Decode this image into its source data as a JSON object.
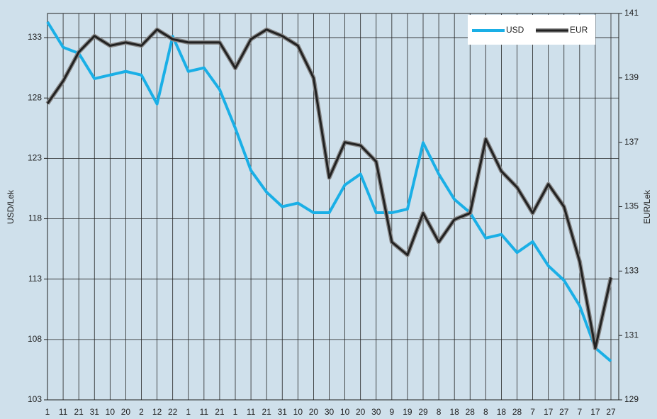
{
  "chart_data": {
    "type": "line",
    "y_label": "USD/Lek",
    "y2_label": "EUR/Lek",
    "categories": [
      "1",
      "11",
      "21",
      "31",
      "10",
      "20",
      "2",
      "12",
      "22",
      "1",
      "11",
      "21",
      "1",
      "11",
      "21",
      "31",
      "10",
      "20",
      "30",
      "10",
      "20",
      "30",
      "9",
      "19",
      "29",
      "8",
      "18",
      "28",
      "8",
      "18",
      "28",
      "7",
      "17",
      "27",
      "7",
      "17",
      "27"
    ],
    "series": [
      {
        "name": "USD",
        "color": "#1aafe6",
        "values": [
          134.3,
          132.2,
          131.7,
          129.6,
          129.9,
          130.2,
          129.9,
          127.5,
          133.1,
          130.2,
          130.5,
          128.7,
          125.5,
          122,
          120.2,
          119,
          119.3,
          118.5,
          118.5,
          120.8,
          121.7,
          118.5,
          118.5,
          118.8,
          124.3,
          121.7,
          119.6,
          118.5,
          116.4,
          116.7,
          115.2,
          116.1,
          114.1,
          112.9,
          110.8,
          107.3,
          106.2
        ]
      },
      {
        "name": "EUR",
        "color": "#222222",
        "axis": "y2",
        "values": [
          138.2,
          138.9,
          139.8,
          140.3,
          140,
          140.1,
          140,
          140.5,
          140.2,
          140.1,
          140.1,
          140.1,
          139.3,
          140.2,
          140.5,
          140.3,
          140,
          139,
          135.9,
          137,
          136.9,
          136.4,
          133.9,
          133.5,
          134.8,
          133.9,
          134.6,
          134.8,
          137.1,
          136.1,
          135.6,
          134.8,
          135.7,
          135,
          133.3,
          130.6,
          132.8
        ]
      }
    ],
    "ylim": [
      103,
      135
    ],
    "yticks": [
      103,
      108,
      113,
      118,
      123,
      128,
      133
    ],
    "y2lim": [
      129,
      141
    ],
    "y2ticks": [
      129,
      131,
      133,
      135,
      137,
      139,
      141
    ],
    "grid": true,
    "legend": "top-right"
  }
}
